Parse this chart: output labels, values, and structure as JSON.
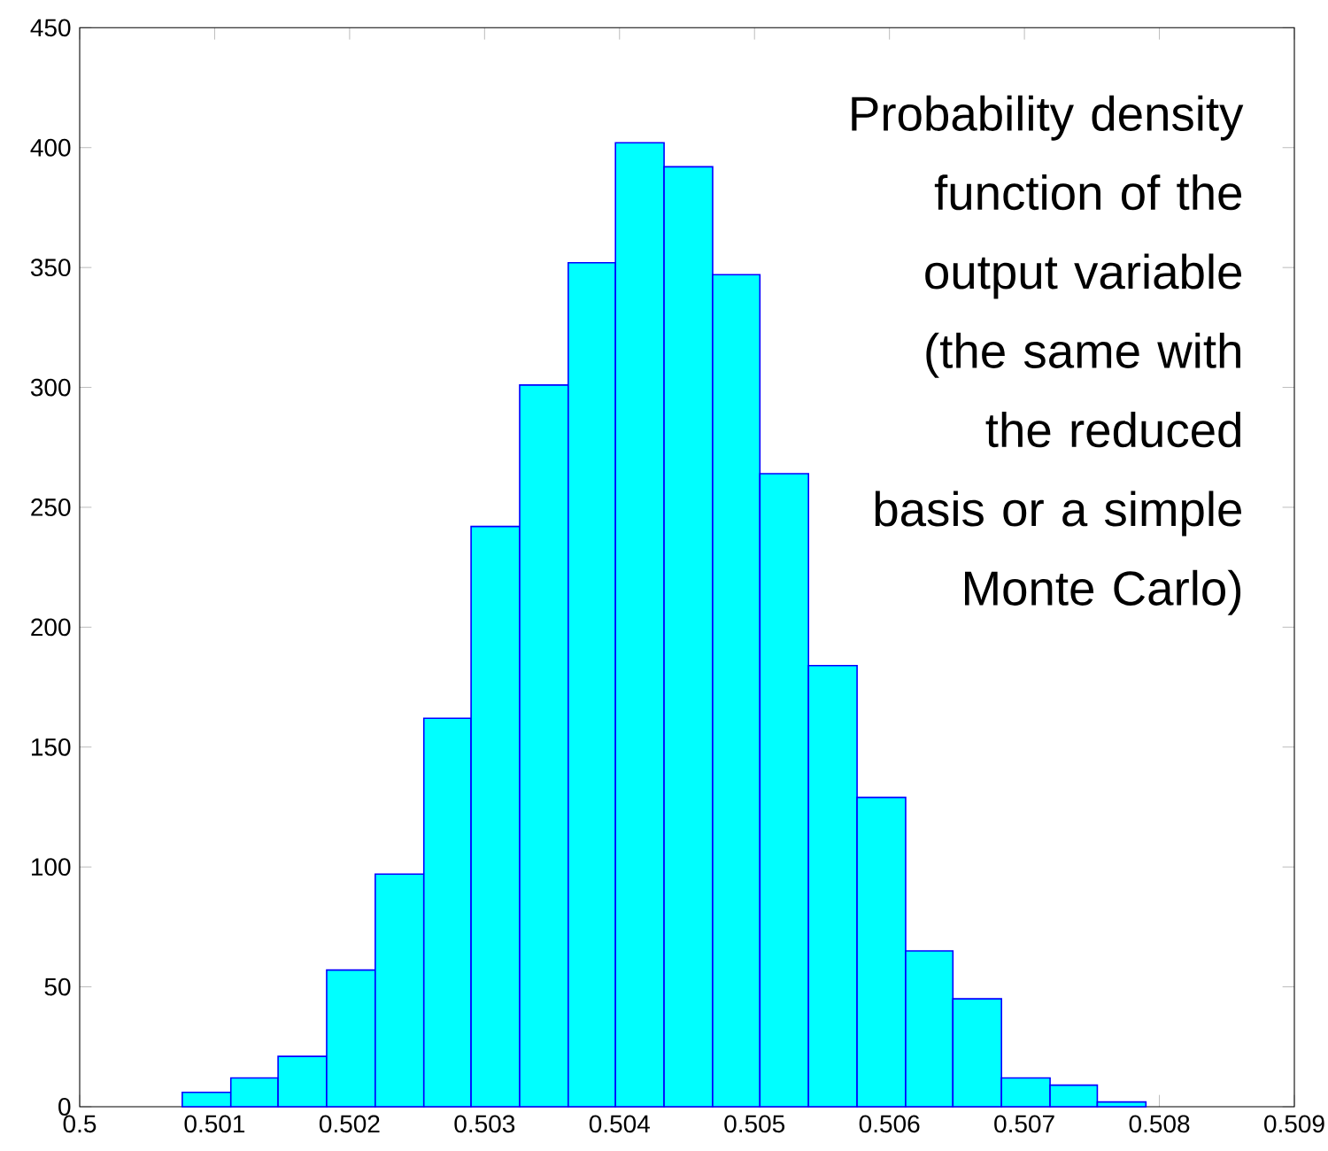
{
  "chart_data": {
    "type": "histogram",
    "bins": [
      0.50076,
      0.50112,
      0.50147,
      0.50183,
      0.50219,
      0.50255,
      0.5029,
      0.50326,
      0.50362,
      0.50397,
      0.50433,
      0.50469,
      0.50504,
      0.5054,
      0.50576,
      0.50612,
      0.50647,
      0.50683,
      0.50719,
      0.50754,
      0.5079
    ],
    "values": [
      6,
      12,
      21,
      57,
      97,
      162,
      242,
      301,
      352,
      402,
      392,
      347,
      264,
      184,
      129,
      65,
      45,
      12,
      9,
      2
    ],
    "color": "#00ffff",
    "xlim": [
      0.5,
      0.509
    ],
    "xticks": [
      {
        "value": 0.5,
        "label": "0.5"
      },
      0.501,
      0.502,
      0.503,
      0.504,
      0.505,
      0.506,
      0.507,
      0.508,
      0.509
    ],
    "ylim": [
      0,
      450
    ],
    "yticks": [
      0,
      50,
      100,
      150,
      200,
      250,
      300,
      350,
      400,
      450
    ],
    "grid": false,
    "annotations": [
      "Probability density function of the output variable (the same with the reduced basis or a simple Monte Carlo)"
    ]
  }
}
